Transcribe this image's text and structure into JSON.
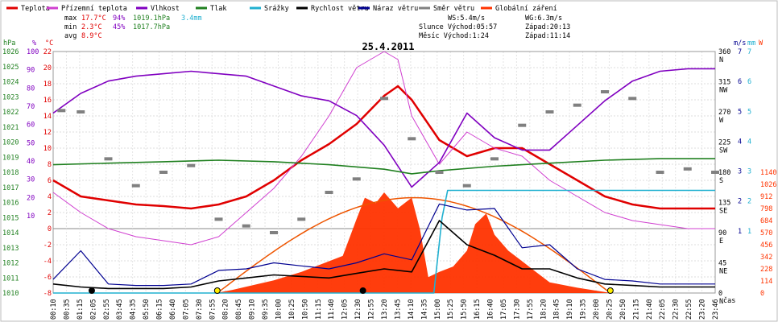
{
  "chart_data": {
    "type": "line",
    "title": "25.4.2011",
    "xlabel": "čas",
    "legend": [
      {
        "label": "Teplota",
        "color": "#e00000"
      },
      {
        "label": "Přízemní teplota",
        "color": "#d040d0"
      },
      {
        "label": "Vlhkost",
        "color": "#8000c0"
      },
      {
        "label": "Tlak",
        "color": "#208020"
      },
      {
        "label": "Srážky",
        "color": "#20b0d0"
      },
      {
        "label": "Rychlost větru",
        "color": "#000000"
      },
      {
        "label": "Náraz větru",
        "color": "#000090"
      },
      {
        "label": "Směr větru",
        "color": "#808080"
      },
      {
        "label": "Globální záření",
        "color": "#ff3300"
      }
    ],
    "stats": {
      "max_label": "max",
      "max_temp": "17.7°C",
      "max_hum": "94%",
      "max_press": "1019.1hPa",
      "max_rain": "3.4mm",
      "min_label": "min",
      "min_temp": "2.3°C",
      "min_hum": "45%",
      "min_press": "1017.7hPa",
      "avg_label": "avg",
      "avg_temp": "8.9°C",
      "ws": "WS:5.4m/s",
      "wg": "WG:6.3m/s",
      "sun_rise": "Slunce Východ:05:57",
      "sun_set": "Západ:20:13",
      "moon_rise": "Měsíc Východ:1:24",
      "moon_set": "Západ:11:14"
    },
    "axes": {
      "hpa_unit": "hPa",
      "hpa_ticks": [
        "1026",
        "1025",
        "1024",
        "1023",
        "1022",
        "1021",
        "1020",
        "1019",
        "1018",
        "1017",
        "1016",
        "1015",
        "1014",
        "1013",
        "1012",
        "1011",
        "1010"
      ],
      "pct_unit": "%",
      "pct_ticks": [
        "100",
        "90",
        "80",
        "70",
        "60",
        "50",
        "40",
        "30",
        "20",
        "10"
      ],
      "c_unit": "°C",
      "c_ticks": [
        "22",
        "20",
        "18",
        "16",
        "14",
        "12",
        "10",
        "8",
        "6",
        "4",
        "2",
        "0",
        "-2",
        "-4",
        "-6",
        "-8"
      ],
      "dir_ticks": [
        "360",
        "315",
        "270",
        "225",
        "180",
        "135",
        "90",
        "45",
        "0"
      ],
      "dir_labels": [
        "N",
        "NW",
        "W",
        "SW",
        "S",
        "SE",
        "E",
        "NE",
        "N"
      ],
      "ms_unit": "m/s",
      "ms_ticks": [
        "7",
        "6",
        "5",
        "4",
        "3",
        "2",
        "1"
      ],
      "mm_unit": "mm",
      "mm_ticks": [
        "7",
        "6",
        "5",
        "4",
        "3",
        "2",
        "1"
      ],
      "w_unit": "W",
      "w_ticks": [
        "1140",
        "1026",
        "912",
        "798",
        "684",
        "570",
        "456",
        "342",
        "228",
        "114",
        "0"
      ],
      "x_ticks": [
        "00:10",
        "00:35",
        "01:15",
        "02:05",
        "02:55",
        "03:45",
        "04:35",
        "05:50",
        "06:15",
        "06:40",
        "07:05",
        "07:30",
        "07:55",
        "08:20",
        "08:45",
        "09:10",
        "09:35",
        "10:00",
        "10:25",
        "10:50",
        "11:15",
        "11:40",
        "12:05",
        "12:30",
        "12:55",
        "13:20",
        "13:45",
        "14:10",
        "14:35",
        "15:00",
        "15:25",
        "15:50",
        "16:15",
        "16:40",
        "17:05",
        "17:30",
        "17:55",
        "18:20",
        "18:45",
        "19:10",
        "19:35",
        "20:00",
        "20:25",
        "20:50",
        "21:15",
        "21:40",
        "22:05",
        "22:30",
        "22:55",
        "23:20",
        "23:46"
      ]
    },
    "series": [
      {
        "name": "Teplota",
        "unit": "°C",
        "x": [
          0,
          1,
          2,
          3,
          4,
          5,
          6,
          7,
          8,
          9,
          10,
          11,
          12,
          12.5,
          13,
          14,
          15,
          16,
          17,
          18,
          19,
          20,
          21,
          22,
          23,
          24
        ],
        "values": [
          6,
          4,
          3.5,
          3,
          2.8,
          2.5,
          3,
          4,
          6,
          8.5,
          10.5,
          13,
          16.5,
          17.7,
          16,
          11,
          9,
          10,
          10,
          8,
          6,
          4,
          3,
          2.5,
          2.5,
          2.5
        ]
      },
      {
        "name": "Přízemní teplota",
        "unit": "°C",
        "x": [
          0,
          1,
          2,
          3,
          4,
          5,
          6,
          7,
          8,
          9,
          10,
          11,
          12,
          12.5,
          13,
          14,
          15,
          16,
          17,
          18,
          19,
          20,
          21,
          22,
          23,
          24
        ],
        "values": [
          4.5,
          2,
          0,
          -1,
          -1.5,
          -2,
          -1,
          2,
          5,
          9,
          14,
          20,
          22,
          21,
          14,
          8,
          12,
          10,
          9,
          6,
          4,
          2,
          1,
          0.5,
          0,
          0
        ]
      },
      {
        "name": "Vlhkost",
        "unit": "%",
        "x": [
          0,
          1,
          2,
          3,
          4,
          5,
          6,
          7,
          8,
          9,
          10,
          11,
          12,
          13,
          14,
          15,
          16,
          17,
          18,
          19,
          20,
          21,
          22,
          23,
          24
        ],
        "values": [
          75,
          83,
          88,
          90,
          91,
          92,
          91,
          90,
          86,
          82,
          80,
          74,
          62,
          45,
          55,
          75,
          65,
          60,
          60,
          70,
          80,
          88,
          92,
          93,
          93
        ]
      },
      {
        "name": "Tlak",
        "unit": "hPa",
        "x": [
          0,
          2,
          4,
          6,
          8,
          10,
          12,
          13,
          14,
          16,
          18,
          20,
          22,
          24
        ],
        "values": [
          1018.5,
          1018.6,
          1018.7,
          1018.8,
          1018.7,
          1018.5,
          1018.2,
          1017.9,
          1018.1,
          1018.4,
          1018.6,
          1018.8,
          1018.9,
          1018.9
        ]
      },
      {
        "name": "Srážky",
        "unit": "mm",
        "x": [
          0,
          13.8,
          14.1,
          14.3,
          24
        ],
        "values": [
          0,
          0,
          2.5,
          3.4,
          3.4
        ]
      },
      {
        "name": "Globální záření",
        "unit": "W/m²",
        "x": [
          0,
          5.9,
          6.5,
          7,
          8,
          9,
          10,
          10.5,
          11,
          11.3,
          11.7,
          12,
          12.5,
          13,
          13.3,
          13.6,
          14,
          14.5,
          15,
          15.3,
          15.7,
          16,
          16.5,
          17,
          17.5,
          18,
          19,
          20,
          20.2,
          24
        ],
        "values": [
          0,
          0,
          30,
          60,
          120,
          200,
          300,
          350,
          700,
          900,
          850,
          950,
          800,
          900,
          600,
          150,
          200,
          250,
          400,
          650,
          750,
          550,
          400,
          300,
          200,
          100,
          50,
          10,
          0,
          0
        ]
      },
      {
        "name": "Rychlost větru",
        "unit": "m/s",
        "x": [
          0,
          1,
          2,
          3,
          4,
          5,
          6,
          7,
          8,
          9,
          10,
          11,
          12,
          13,
          14,
          15,
          16,
          17,
          18,
          19,
          20,
          21,
          22,
          23,
          24
        ],
        "values": [
          0.6,
          0.4,
          0.3,
          0.3,
          0.3,
          0.4,
          0.8,
          1.0,
          1.2,
          1.1,
          1.0,
          1.3,
          1.6,
          1.4,
          4.8,
          3.2,
          2.5,
          1.6,
          1.6,
          1.0,
          0.6,
          0.5,
          0.4,
          0.4,
          0.4
        ]
      },
      {
        "name": "Náraz větru",
        "unit": "m/s",
        "x": [
          0,
          1,
          2,
          3,
          4,
          5,
          6,
          7,
          8,
          9,
          10,
          11,
          12,
          13,
          14,
          15,
          16,
          17,
          18,
          19,
          20,
          21,
          22,
          23,
          24
        ],
        "values": [
          0.9,
          2.8,
          0.6,
          0.5,
          0.5,
          0.6,
          1.5,
          1.6,
          2.0,
          1.8,
          1.6,
          2.0,
          2.6,
          2.2,
          5.9,
          5.5,
          5.6,
          3.0,
          3.2,
          1.6,
          0.9,
          0.8,
          0.6,
          0.6,
          0.6
        ]
      },
      {
        "name": "Směr větru",
        "unit": "°",
        "x": [
          0.3,
          1,
          2,
          3,
          4,
          5,
          6,
          7,
          8,
          9,
          10,
          11,
          12,
          13,
          14,
          15,
          16,
          17,
          18,
          19,
          20,
          21,
          22,
          23,
          24
        ],
        "values": [
          272,
          270,
          200,
          160,
          180,
          190,
          110,
          100,
          90,
          110,
          150,
          170,
          290,
          230,
          180,
          160,
          200,
          250,
          270,
          280,
          300,
          290,
          180,
          185,
          180
        ]
      }
    ]
  }
}
